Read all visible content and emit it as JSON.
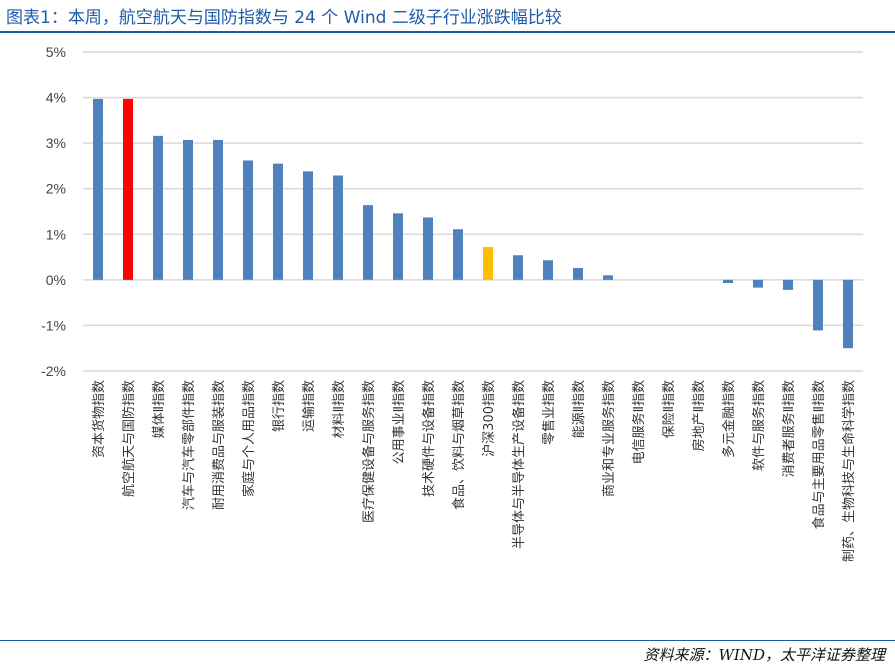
{
  "title": "图表1：本周，航空航天与国防指数与 24 个 Wind 二级子行业涨跌幅比较",
  "source": "资料来源：WIND，太平洋证券整理",
  "colors": {
    "default": "#4f81bd",
    "highlight": "#ff0000",
    "benchmark": "#ffc000",
    "grid": "#d9d9d9",
    "accent": "#1f5aa6"
  },
  "chart_data": {
    "type": "bar",
    "title": "",
    "xlabel": "",
    "ylabel": "",
    "ylim": [
      -2,
      5
    ],
    "yticks": [
      5,
      4,
      3,
      2,
      1,
      0,
      -1,
      -2
    ],
    "ytick_labels": [
      "5%",
      "4%",
      "3%",
      "2%",
      "1%",
      "0%",
      "-1%",
      "-2%"
    ],
    "grid": true,
    "legend": "none",
    "categories": [
      "资本货物指数",
      "航空航天与国防指数",
      "媒体Ⅱ指数",
      "汽车与汽车零部件指数",
      "耐用消费品与服装指数",
      "家庭与个人用品指数",
      "银行指数",
      "运输指数",
      "材料Ⅱ指数",
      "医疗保健设备与服务指数",
      "公用事业Ⅱ指数",
      "技术硬件与设备指数",
      "食品、饮料与烟草指数",
      "沪深300指数",
      "半导体与半导体生产设备指数",
      "零售业指数",
      "能源Ⅱ指数",
      "商业和专业服务指数",
      "电信服务Ⅱ指数",
      "保险Ⅱ指数",
      "房地产Ⅱ指数",
      "多元金融指数",
      "软件与服务指数",
      "消费者服务Ⅱ指数",
      "食品与主要用品零售Ⅱ指数",
      "制药、生物科技与生命科学指数"
    ],
    "values": [
      3.97,
      3.97,
      3.16,
      3.07,
      3.07,
      2.62,
      2.55,
      2.38,
      2.29,
      1.64,
      1.46,
      1.37,
      1.11,
      0.72,
      0.54,
      0.43,
      0.26,
      0.1,
      0.0,
      0.0,
      0.0,
      -0.07,
      -0.17,
      -0.22,
      -1.11,
      -1.5
    ],
    "highlight_index": 1,
    "benchmark_index": 13
  }
}
